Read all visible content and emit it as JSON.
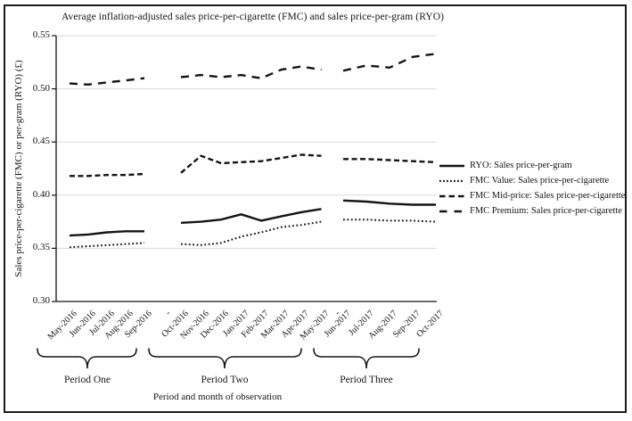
{
  "figure": {
    "title": "Average inflation-adjusted sales price-per-cigarette (FMC) and sales price-per-gram (RYO)",
    "y_axis_label": "Sales price-per-cigarette (FMC) or per-gram (RYO) (£)",
    "x_axis_label": "Period and month of observation"
  },
  "chart_data": {
    "type": "line",
    "title": "Average inflation-adjusted sales price-per-cigarette (FMC) and sales price-per-gram (RYO)",
    "xlabel": "Period and month of observation",
    "ylabel": "Sales price-per-cigarette (FMC) or per-gram (RYO) (£)",
    "ylim": [
      0.3,
      0.55
    ],
    "y_ticks": [
      0.3,
      0.35,
      0.4,
      0.45,
      0.5,
      0.55
    ],
    "grid": "horizontal light-gray gridlines",
    "legend_position": "right",
    "gap_label": "-",
    "categories": [
      "May-2016",
      "Jun-2016",
      "Jul-2016",
      "Aug-2016",
      "Sep-2016",
      "Oct-2016",
      "Nov-2016",
      "Dec-2016",
      "Jan-2017",
      "Feb-2017",
      "Mar-2017",
      "Apr-2017",
      "May-2017",
      "Jun-2017",
      "Jul-2017",
      "Aug-2017",
      "Sep-2017",
      "Oct-2017"
    ],
    "periods": [
      {
        "label": "Period One",
        "months": 5
      },
      {
        "label": "Period Two",
        "months": 8
      },
      {
        "label": "Period Three",
        "months": 5
      }
    ],
    "series": [
      {
        "name": "RYO",
        "label": "RYO: Sales price-per-gram",
        "style": "solid",
        "values": [
          0.362,
          0.363,
          0.365,
          0.366,
          0.366,
          0.374,
          0.375,
          0.377,
          0.382,
          0.376,
          0.38,
          0.384,
          0.387,
          0.395,
          0.394,
          0.392,
          0.391,
          0.391
        ]
      },
      {
        "name": "FMC Value",
        "label": "FMC Value: Sales price-per-cigarette",
        "style": "dotted",
        "values": [
          0.351,
          0.352,
          0.353,
          0.354,
          0.355,
          0.354,
          0.353,
          0.355,
          0.361,
          0.365,
          0.37,
          0.372,
          0.375,
          0.377,
          0.377,
          0.376,
          0.376,
          0.375
        ]
      },
      {
        "name": "FMC Mid-price",
        "label": "FMC Mid-price: Sales price-per-cigarette",
        "style": "dashed",
        "values": [
          0.418,
          0.418,
          0.419,
          0.419,
          0.42,
          0.421,
          0.437,
          0.43,
          0.431,
          0.432,
          0.435,
          0.438,
          0.437,
          0.434,
          0.434,
          0.433,
          0.432,
          0.431
        ]
      },
      {
        "name": "FMC Premium",
        "label": "FMC Premium: Sales price-per-cigarette",
        "style": "long-dash",
        "values": [
          0.505,
          0.504,
          0.506,
          0.508,
          0.51,
          0.511,
          0.513,
          0.511,
          0.513,
          0.51,
          0.518,
          0.521,
          0.518,
          0.517,
          0.522,
          0.52,
          0.53,
          0.533
        ]
      }
    ],
    "colors": {
      "line": "#141414",
      "grid": "#d9d9d9",
      "background": "#ffffff",
      "border": "#1b1b1b"
    }
  }
}
